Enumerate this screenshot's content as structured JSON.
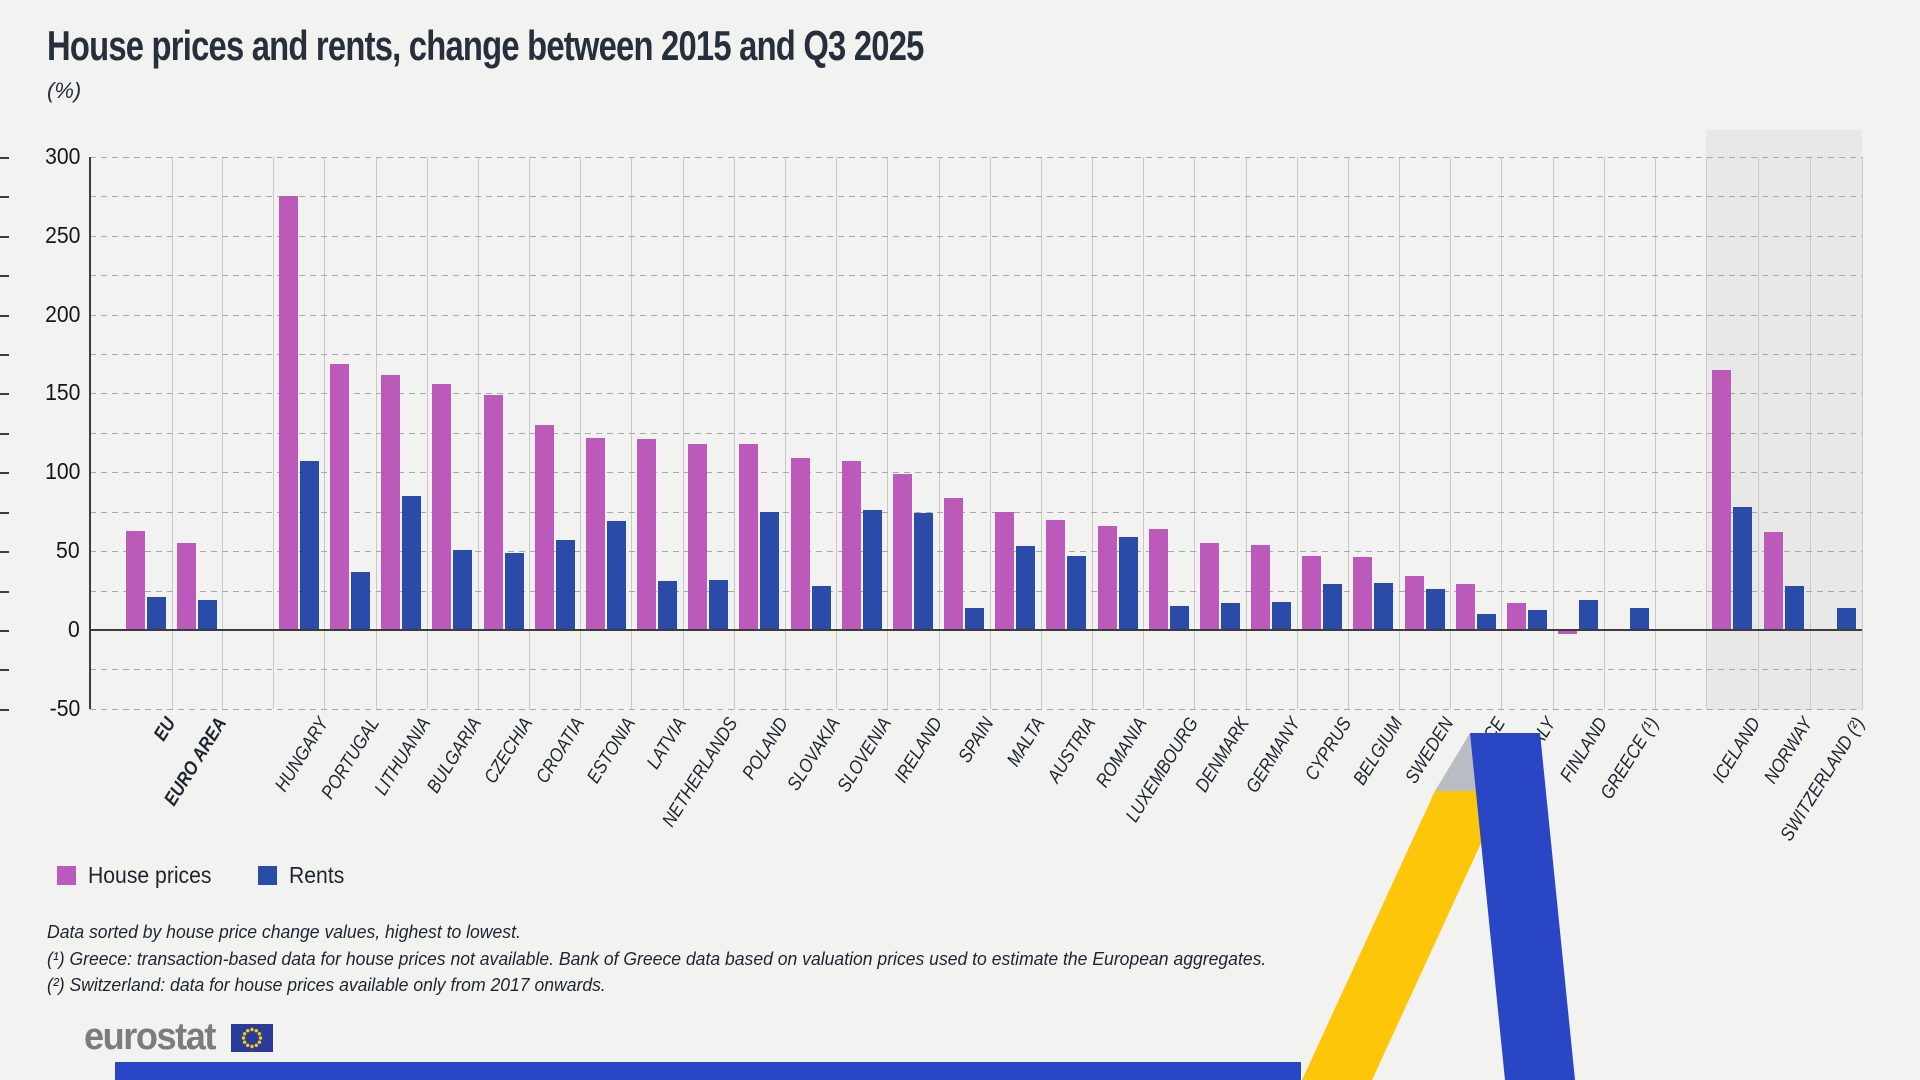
{
  "title": "House prices and rents, change between 2015 and Q3 2025",
  "unit_label": "(%)",
  "colors": {
    "house_prices": "#bc5abc",
    "rents": "#2b4ba8",
    "background": "#f2f2f0",
    "efta_shade": "#e8e8e6",
    "axis": "#3c3c3c",
    "ribbon_yellow": "#fdc608",
    "ribbon_blue": "#2946c4",
    "flag_blue": "#2a3b9c",
    "flag_stars": "#ffcc00",
    "logo_gray": "#7c7c7e"
  },
  "legend": [
    {
      "label": "House prices",
      "series": "house_prices"
    },
    {
      "label": "Rents",
      "series": "rents"
    }
  ],
  "footnotes": [
    "Data sorted by house price change values, highest to lowest.",
    "(¹) Greece: transaction-based data for house prices not available. Bank of Greece data based on valuation prices used to estimate the European aggregates.",
    "(²) Switzerland: data for house prices available only from 2017 onwards."
  ],
  "logo_text": "eurostat",
  "chart_data": {
    "type": "bar",
    "title": "House prices and rents, change between 2015 and Q3 2025",
    "unit": "%",
    "ylim": [
      -50,
      300
    ],
    "yticks": [
      300,
      250,
      200,
      150,
      100,
      50,
      0,
      -50
    ],
    "grid_minor_interval": 25,
    "grid": "horizontal dashed every 25, vertical solid per category",
    "legend_position": "bottom-left",
    "xlabel": "",
    "ylabel": "(%)",
    "sort_note": "sorted by house price change, highest to lowest",
    "groups": [
      {
        "name": "aggregates",
        "bold_labels": true,
        "shaded": false,
        "categories": [
          "EU",
          "EURO AREA"
        ],
        "series": [
          {
            "name": "House prices",
            "values": [
              63,
              55
            ]
          },
          {
            "name": "Rents",
            "values": [
              21,
              19
            ]
          }
        ]
      },
      {
        "name": "eu-members",
        "bold_labels": false,
        "shaded": false,
        "categories": [
          "HUNGARY",
          "PORTUGAL",
          "LITHUANIA",
          "BULGARIA",
          "CZECHIA",
          "CROATIA",
          "ESTONIA",
          "LATVIA",
          "NETHERLANDS",
          "POLAND",
          "SLOVAKIA",
          "SLOVENIA",
          "IRELAND",
          "SPAIN",
          "MALTA",
          "AUSTRIA",
          "ROMANIA",
          "LUXEMBOURG",
          "DENMARK",
          "GERMANY",
          "CYPRUS",
          "BELGIUM",
          "SWEDEN",
          "FRANCE",
          "ITALY",
          "FINLAND",
          "GREECE (¹)"
        ],
        "series": [
          {
            "name": "House prices",
            "values": [
              275,
              169,
              162,
              156,
              149,
              130,
              122,
              121,
              118,
              118,
              109,
              107,
              99,
              84,
              75,
              70,
              66,
              64,
              55,
              54,
              47,
              46,
              34,
              29,
              17,
              -2,
              null
            ]
          },
          {
            "name": "Rents",
            "values": [
              107,
              37,
              85,
              51,
              49,
              57,
              69,
              31,
              32,
              75,
              28,
              76,
              74,
              14,
              53,
              47,
              59,
              15,
              17,
              18,
              29,
              30,
              26,
              10,
              13,
              19,
              14
            ]
          }
        ]
      },
      {
        "name": "efta",
        "bold_labels": false,
        "shaded": true,
        "categories": [
          "ICELAND",
          "NORWAY",
          "SWITZERLAND (²)"
        ],
        "series": [
          {
            "name": "House prices",
            "values": [
              165,
              62,
              null
            ]
          },
          {
            "name": "Rents",
            "values": [
              78,
              28,
              14
            ]
          }
        ]
      }
    ]
  }
}
